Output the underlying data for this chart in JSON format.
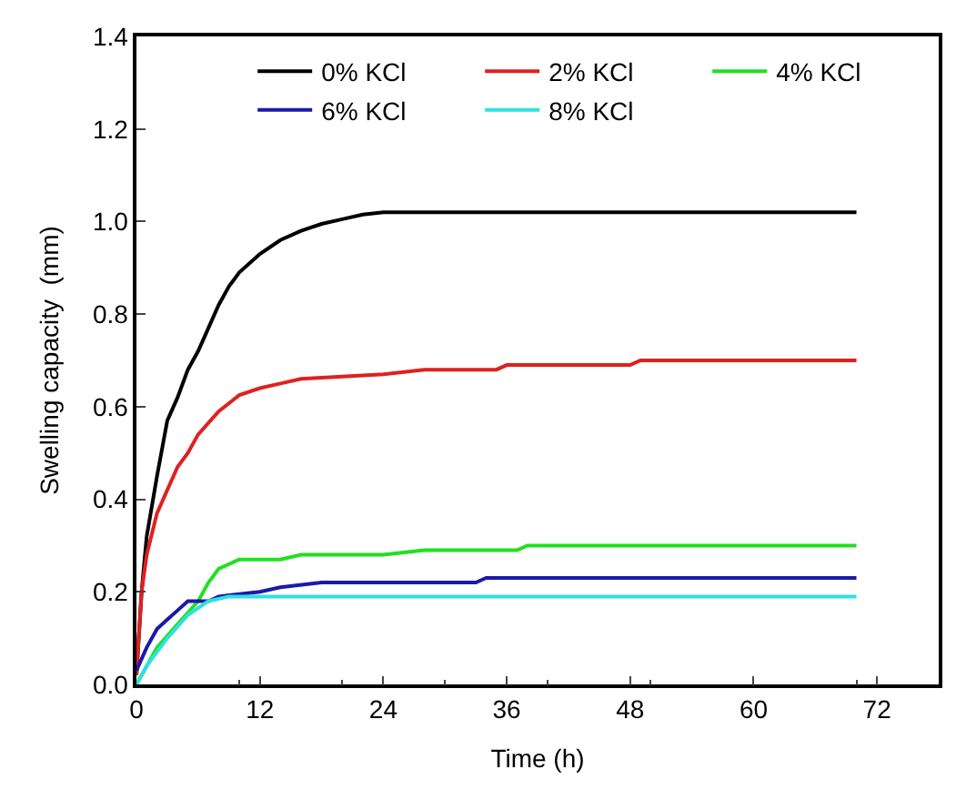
{
  "chart_data": {
    "type": "line",
    "xlabel": "Time (h)",
    "ylabel": "Swelling capacity  (mm)",
    "xlim": [
      0,
      78
    ],
    "xticks": [
      0,
      12,
      24,
      36,
      48,
      60,
      72
    ],
    "ylim": [
      0,
      1.4
    ],
    "yticks": [
      {
        "value": 0,
        "label": "0.0"
      },
      {
        "value": 0.2,
        "label": "0.2"
      },
      {
        "value": 0.4,
        "label": "0.4"
      },
      {
        "value": 0.6,
        "label": "0.6"
      },
      {
        "value": 0.8,
        "label": "0.8"
      },
      {
        "value": 1,
        "label": "1.0"
      },
      {
        "value": 1.2,
        "label": "1.2"
      },
      {
        "value": 1.4,
        "label": "1.4"
      }
    ],
    "legend": "top right",
    "marker": "none",
    "line_style": "solid",
    "series": [
      {
        "name": "0% KCl",
        "color": "#000000",
        "x": [
          0,
          0.5,
          1,
          2,
          3,
          4,
          5,
          6,
          7,
          8,
          9,
          10,
          12,
          14,
          16,
          18,
          20,
          22,
          24,
          70
        ],
        "values": [
          0.02,
          0.2,
          0.32,
          0.45,
          0.57,
          0.62,
          0.68,
          0.72,
          0.77,
          0.82,
          0.86,
          0.89,
          0.93,
          0.96,
          0.98,
          0.995,
          1.005,
          1.015,
          1.02,
          1.02
        ]
      },
      {
        "name": "2% KCl",
        "color": "#e02020",
        "x": [
          0,
          0.5,
          1,
          2,
          3,
          4,
          5,
          6,
          8,
          10,
          12,
          14,
          16,
          20,
          24,
          28,
          35,
          36,
          48,
          49,
          70
        ],
        "values": [
          0.02,
          0.2,
          0.28,
          0.37,
          0.42,
          0.47,
          0.5,
          0.54,
          0.59,
          0.625,
          0.64,
          0.65,
          0.66,
          0.665,
          0.67,
          0.68,
          0.68,
          0.69,
          0.69,
          0.7,
          0.7
        ]
      },
      {
        "name": "4% KCl",
        "color": "#20e020",
        "x": [
          0,
          1,
          2,
          4,
          6,
          7,
          8,
          10,
          14,
          16,
          24,
          28,
          37,
          38,
          70
        ],
        "values": [
          0.0,
          0.04,
          0.08,
          0.13,
          0.18,
          0.22,
          0.25,
          0.27,
          0.27,
          0.28,
          0.28,
          0.29,
          0.29,
          0.3,
          0.3
        ]
      },
      {
        "name": "6% KCl",
        "color": "#1a1aa8",
        "x": [
          0,
          1,
          2,
          3,
          4,
          5,
          7,
          8,
          12,
          14,
          18,
          33,
          34,
          70
        ],
        "values": [
          0.03,
          0.08,
          0.12,
          0.14,
          0.16,
          0.18,
          0.18,
          0.19,
          0.2,
          0.21,
          0.22,
          0.22,
          0.23,
          0.23
        ]
      },
      {
        "name": "8% KCl",
        "color": "#30e0e0",
        "x": [
          0,
          1,
          3,
          5,
          7,
          9,
          70
        ],
        "values": [
          0.0,
          0.04,
          0.1,
          0.15,
          0.18,
          0.19,
          0.19
        ]
      }
    ]
  }
}
